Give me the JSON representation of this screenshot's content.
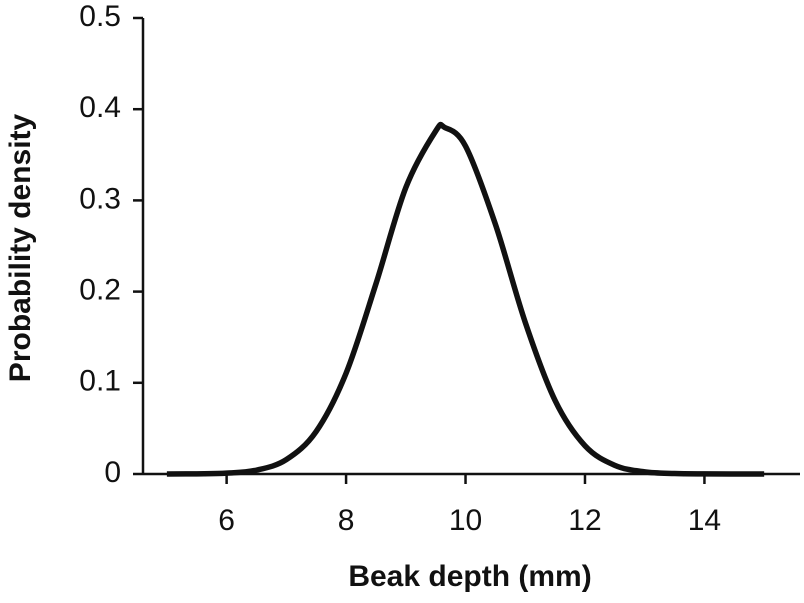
{
  "chart_data": {
    "type": "line",
    "x_label": "Beak depth (mm)",
    "y_label": "Probability density",
    "x": [
      5,
      5.5,
      6,
      6.5,
      7,
      7.5,
      8,
      8.5,
      9,
      9.5,
      9.65,
      10,
      10.5,
      11,
      11.5,
      12,
      12.5,
      13,
      13.5,
      14,
      14.5,
      15
    ],
    "values": [
      0,
      0.0002,
      0.0009,
      0.0042,
      0.0158,
      0.0467,
      0.1105,
      0.2085,
      0.314,
      0.376,
      0.38,
      0.3595,
      0.2738,
      0.1663,
      0.0805,
      0.031,
      0.0095,
      0.0023,
      0.0005,
      0.0001,
      0,
      0
    ],
    "color": "#111111",
    "xlim": [
      4.6,
      15.6
    ],
    "ylim": [
      0,
      0.5
    ],
    "xticks": [
      6,
      8,
      10,
      12,
      14
    ],
    "yticks": [
      0,
      0.1,
      0.2,
      0.3,
      0.4,
      0.5
    ],
    "grid": false
  }
}
